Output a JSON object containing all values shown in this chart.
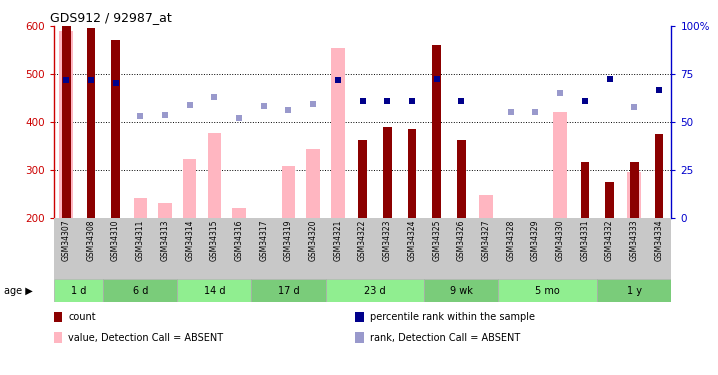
{
  "title": "GDS912 / 92987_at",
  "samples": [
    "GSM34307",
    "GSM34308",
    "GSM34310",
    "GSM34311",
    "GSM34313",
    "GSM34314",
    "GSM34315",
    "GSM34316",
    "GSM34317",
    "GSM34319",
    "GSM34320",
    "GSM34321",
    "GSM34322",
    "GSM34323",
    "GSM34324",
    "GSM34325",
    "GSM34326",
    "GSM34327",
    "GSM34328",
    "GSM34329",
    "GSM34330",
    "GSM34331",
    "GSM34332",
    "GSM34333",
    "GSM34334"
  ],
  "count_values": [
    600,
    596,
    572,
    null,
    null,
    null,
    null,
    null,
    null,
    null,
    null,
    null,
    363,
    390,
    385,
    560,
    363,
    null,
    null,
    null,
    null,
    316,
    275,
    317,
    375
  ],
  "absent_values": [
    590,
    null,
    null,
    240,
    230,
    322,
    376,
    220,
    null,
    308,
    344,
    554,
    null,
    null,
    null,
    null,
    null,
    248,
    null,
    null,
    420,
    null,
    null,
    296,
    null
  ],
  "percentile_present": [
    488,
    488,
    482,
    null,
    null,
    null,
    null,
    null,
    null,
    null,
    null,
    487,
    444,
    444,
    444,
    490,
    444,
    null,
    null,
    null,
    null,
    444,
    490,
    null,
    466
  ],
  "percentile_absent": [
    null,
    null,
    null,
    413,
    415,
    435,
    452,
    408,
    433,
    425,
    438,
    null,
    null,
    null,
    null,
    null,
    null,
    null,
    421,
    421,
    461,
    null,
    null,
    432,
    null
  ],
  "ylim_left": [
    200,
    600
  ],
  "ylim_right": [
    0,
    100
  ],
  "age_groups": [
    {
      "label": "1 d",
      "samples": [
        "GSM34307",
        "GSM34308"
      ]
    },
    {
      "label": "6 d",
      "samples": [
        "GSM34310",
        "GSM34311",
        "GSM34313"
      ]
    },
    {
      "label": "14 d",
      "samples": [
        "GSM34314",
        "GSM34315",
        "GSM34316"
      ]
    },
    {
      "label": "17 d",
      "samples": [
        "GSM34317",
        "GSM34319",
        "GSM34320"
      ]
    },
    {
      "label": "23 d",
      "samples": [
        "GSM34321",
        "GSM34322",
        "GSM34323",
        "GSM34324"
      ]
    },
    {
      "label": "9 wk",
      "samples": [
        "GSM34325",
        "GSM34326",
        "GSM34327"
      ]
    },
    {
      "label": "5 mo",
      "samples": [
        "GSM34328",
        "GSM34329",
        "GSM34330",
        "GSM34331"
      ]
    },
    {
      "label": "1 y",
      "samples": [
        "GSM34332",
        "GSM34333",
        "GSM34334"
      ]
    }
  ],
  "color_count": "#8B0000",
  "color_absent_bar": "#FFB6C1",
  "color_percentile_present": "#00008B",
  "color_percentile_absent": "#9999CC",
  "color_axis_left": "#CC0000",
  "color_axis_right": "#0000CC",
  "yticks_left": [
    200,
    300,
    400,
    500,
    600
  ],
  "yticks_right": [
    0,
    25,
    50,
    75,
    100
  ],
  "age_colors": [
    "#90EE90",
    "#7ACC7A"
  ],
  "bg_xtick": "#C8C8C8",
  "legend_items": [
    {
      "color": "#8B0000",
      "label": "count"
    },
    {
      "color": "#00008B",
      "label": "percentile rank within the sample"
    },
    {
      "color": "#FFB6C1",
      "label": "value, Detection Call = ABSENT"
    },
    {
      "color": "#9999CC",
      "label": "rank, Detection Call = ABSENT"
    }
  ]
}
